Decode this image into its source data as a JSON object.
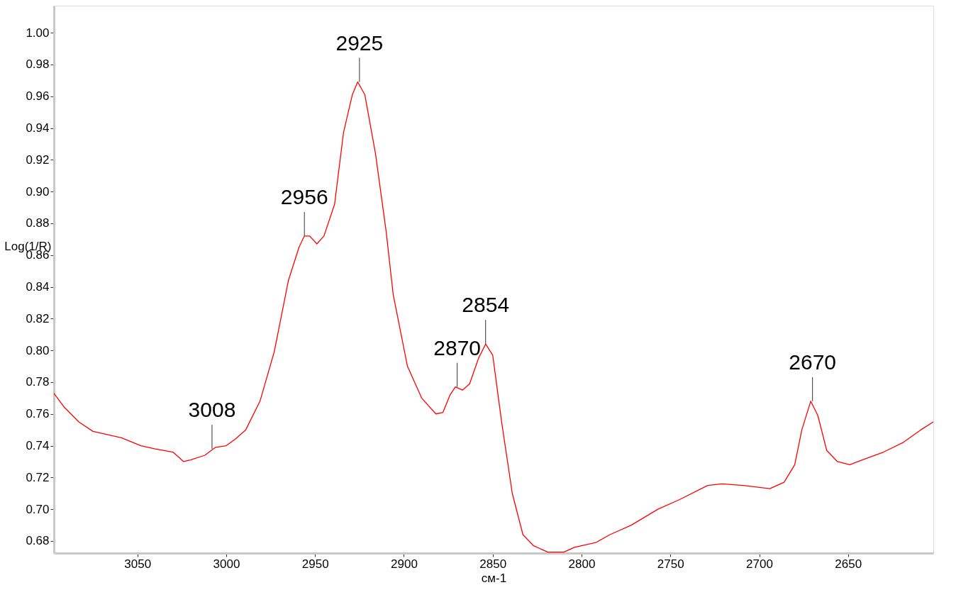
{
  "chart_data": {
    "type": "line",
    "xlabel": "см-1",
    "ylabel": "Log(1/R)",
    "xlim": [
      3097,
      2602
    ],
    "ylim": [
      0.6724,
      1.017
    ],
    "xticks": [
      3050,
      3000,
      2950,
      2900,
      2850,
      2800,
      2750,
      2700,
      2650
    ],
    "yticks": [
      0.68,
      {
        "value": 0.7,
        "label": "0.70"
      },
      0.72,
      0.74,
      0.76,
      0.78,
      {
        "value": 0.8,
        "label": "0.80"
      },
      0.82,
      0.84,
      0.86,
      0.88,
      {
        "value": 0.9,
        "label": "0.90"
      },
      0.92,
      0.94,
      0.96,
      0.98,
      {
        "value": 1,
        "label": "1.00"
      }
    ],
    "grid": false,
    "marker": "none",
    "line_style": "solid",
    "x": [
      3097,
      3091,
      3083,
      3075,
      3059,
      3048,
      3040,
      3035,
      3030,
      3024,
      3020,
      3012,
      3006,
      3000,
      2995,
      2989,
      2981,
      2973,
      2965,
      2959,
      2956,
      2953,
      2949,
      2945,
      2939,
      2934,
      2929,
      2926,
      2922,
      2916,
      2910,
      2906,
      2898,
      2890,
      2882,
      2878,
      2874,
      2871,
      2867,
      2863,
      2858,
      2854,
      2850,
      2845,
      2839,
      2833,
      2827,
      2819,
      2810,
      2804,
      2792,
      2784,
      2772,
      2757,
      2745,
      2729,
      2721,
      2709,
      2694,
      2686,
      2680,
      2676,
      2671,
      2667,
      2662,
      2656,
      2649,
      2642,
      2630,
      2619,
      2609,
      2602
    ],
    "series": [
      {
        "color": "#ff0000",
        "values": [
          0.773,
          0.764,
          0.755,
          0.749,
          0.745,
          0.74,
          0.738,
          0.737,
          0.736,
          0.73,
          0.731,
          0.734,
          0.739,
          0.74,
          0.744,
          0.75,
          0.768,
          0.799,
          0.844,
          0.865,
          0.872,
          0.872,
          0.867,
          0.872,
          0.892,
          0.937,
          0.961,
          0.969,
          0.961,
          0.924,
          0.875,
          0.835,
          0.79,
          0.77,
          0.76,
          0.761,
          0.772,
          0.777,
          0.775,
          0.779,
          0.795,
          0.804,
          0.797,
          0.755,
          0.71,
          0.684,
          0.677,
          0.673,
          0.673,
          0.676,
          0.679,
          0.684,
          0.69,
          0.7,
          0.706,
          0.715,
          0.716,
          0.715,
          0.713,
          0.717,
          0.728,
          0.75,
          0.768,
          0.759,
          0.737,
          0.73,
          0.728,
          0.731,
          0.736,
          0.742,
          0.75,
          0.755
        ]
      }
    ],
    "annotations": [
      {
        "text": "3008",
        "x": 3008,
        "y": 0.738
      },
      {
        "text": "2956",
        "x": 2956,
        "y": 0.872
      },
      {
        "text": "2925",
        "x": 2925,
        "y": 0.969
      },
      {
        "text": "2870",
        "x": 2870,
        "y": 0.777
      },
      {
        "text": "2854",
        "x": 2854,
        "y": 0.804
      },
      {
        "text": "2670",
        "x": 2670,
        "y": 0.768
      }
    ]
  }
}
